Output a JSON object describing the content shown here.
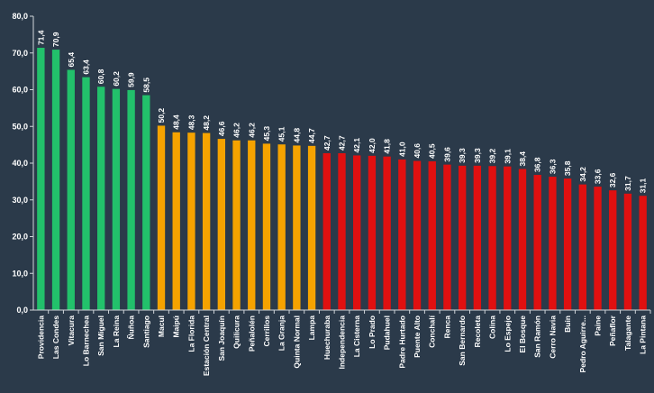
{
  "chart_data": {
    "type": "bar",
    "title": "",
    "xlabel": "",
    "ylabel": "",
    "ylim": [
      0,
      80
    ],
    "yticks": [
      "0,0",
      "10,0",
      "20,0",
      "30,0",
      "40,0",
      "50,0",
      "60,0",
      "70,0",
      "80,0"
    ],
    "grid": false,
    "legend": "none",
    "colors": {
      "high": "#22c16b",
      "mid": "#f5a300",
      "low": "#e01010",
      "background": "#2b3a4a"
    },
    "categories": [
      "Providencia",
      "Las Condes",
      "Vitacura",
      "Lo Barnechea",
      "San Miguel",
      "La Reina",
      "Ñuñoa",
      "Santiago",
      "Macul",
      "Maipú",
      "La Florida",
      "Estación Central",
      "San Joaquín",
      "Quilicura",
      "Peñalolén",
      "Cerrillos",
      "La Granja",
      "Quinta Normal",
      "Lampa",
      "Huechuraba",
      "Independencia",
      "La Cisterna",
      "Lo Prado",
      "Pudahuel",
      "Padre Hurtado",
      "Puente Alto",
      "Conchalí",
      "Renca",
      "San Bernardo",
      "Recoleta",
      "Colina",
      "Lo Espejo",
      "El Bosque",
      "San Ramón",
      "Cerro Navia",
      "Buin",
      "Pedro Aguirre...",
      "Paine",
      "Peñaflor",
      "Talagante",
      "La Pintana"
    ],
    "values": [
      71.4,
      70.9,
      65.4,
      63.4,
      60.8,
      60.2,
      59.9,
      58.5,
      50.2,
      48.4,
      48.3,
      48.2,
      46.6,
      46.2,
      46.2,
      45.3,
      45.1,
      44.8,
      44.7,
      42.7,
      42.7,
      42.1,
      42.0,
      41.8,
      41.0,
      40.6,
      40.5,
      39.6,
      39.3,
      39.3,
      39.2,
      39.1,
      38.4,
      36.8,
      36.3,
      35.8,
      34.2,
      33.6,
      32.6,
      31.7,
      31.1
    ],
    "data_labels": [
      "71,4",
      "70,9",
      "65,4",
      "63,4",
      "60,8",
      "60,2",
      "59,9",
      "58,5",
      "50,2",
      "48,4",
      "48,3",
      "48,2",
      "46,6",
      "46,2",
      "46,2",
      "45,3",
      "45,1",
      "44,8",
      "44,7",
      "42,7",
      "42,7",
      "42,1",
      "42,0",
      "41,8",
      "41,0",
      "40,6",
      "40,5",
      "39,6",
      "39,3",
      "39,3",
      "39,2",
      "39,1",
      "38,4",
      "36,8",
      "36,3",
      "35,8",
      "34,2",
      "33,6",
      "32,6",
      "31,7",
      "31,1"
    ],
    "bar_groups": [
      "high",
      "high",
      "high",
      "high",
      "high",
      "high",
      "high",
      "high",
      "mid",
      "mid",
      "mid",
      "mid",
      "mid",
      "mid",
      "mid",
      "mid",
      "mid",
      "mid",
      "mid",
      "low",
      "low",
      "low",
      "low",
      "low",
      "low",
      "low",
      "low",
      "low",
      "low",
      "low",
      "low",
      "low",
      "low",
      "low",
      "low",
      "low",
      "low",
      "low",
      "low",
      "low",
      "low"
    ]
  }
}
